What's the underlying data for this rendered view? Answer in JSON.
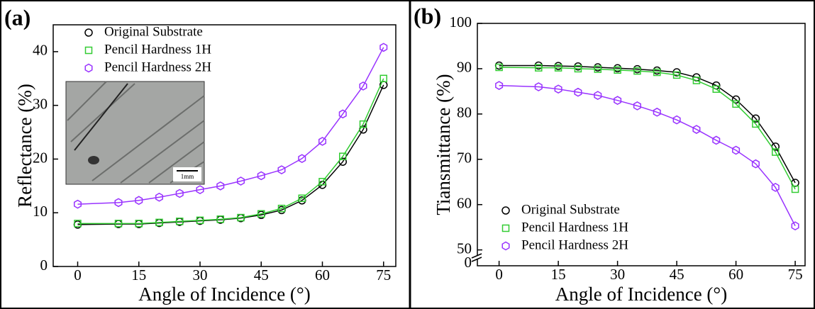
{
  "chart_data": [
    {
      "type": "line",
      "panel_label": "(a)",
      "x_label": "Angle of Incidence (°)",
      "y_label": "Reflectance (%)",
      "x": [
        0,
        10,
        15,
        20,
        25,
        30,
        35,
        40,
        45,
        50,
        55,
        60,
        65,
        70,
        75
      ],
      "series": [
        {
          "name": "Original Substrate",
          "color": "#000000",
          "marker": "circle",
          "values": [
            7.8,
            7.9,
            7.9,
            8.1,
            8.3,
            8.5,
            8.7,
            9.0,
            9.6,
            10.5,
            12.3,
            15.2,
            19.5,
            25.5,
            33.8
          ]
        },
        {
          "name": "Pencil Hardness 1H",
          "color": "#33cc33",
          "marker": "square",
          "values": [
            8.0,
            8.0,
            8.0,
            8.2,
            8.4,
            8.6,
            8.8,
            9.1,
            9.8,
            10.8,
            12.7,
            15.8,
            20.5,
            26.5,
            35.0
          ]
        },
        {
          "name": "Pencil Hardness 2H",
          "color": "#9933ff",
          "marker": "hexagon",
          "values": [
            11.6,
            11.9,
            12.3,
            12.9,
            13.6,
            14.3,
            15.0,
            15.9,
            16.9,
            18.0,
            20.1,
            23.3,
            28.4,
            33.6,
            40.8
          ]
        }
      ],
      "xlim": [
        -6,
        78
      ],
      "xticks": [
        0,
        15,
        30,
        45,
        60,
        75
      ],
      "ylim": [
        0,
        45
      ],
      "yticks": [
        0,
        10,
        20,
        30,
        40
      ],
      "legend": "upper left",
      "inset_scale_label": "1mm"
    },
    {
      "type": "line",
      "panel_label": "(b)",
      "x_label": "Angle of Incidence (°)",
      "y_label": "Tiansmittance (%)",
      "x": [
        0,
        10,
        15,
        20,
        25,
        30,
        35,
        40,
        45,
        50,
        55,
        60,
        65,
        70,
        75
      ],
      "series": [
        {
          "name": "Original Substrate",
          "color": "#000000",
          "marker": "circle",
          "values": [
            90.7,
            90.7,
            90.6,
            90.5,
            90.3,
            90.1,
            89.9,
            89.6,
            89.2,
            88.1,
            86.3,
            83.2,
            79.0,
            72.8,
            64.8
          ]
        },
        {
          "name": "Pencil Hardness 1H",
          "color": "#33cc33",
          "marker": "square",
          "values": [
            90.3,
            90.2,
            90.2,
            90.0,
            89.9,
            89.7,
            89.5,
            89.2,
            88.6,
            87.4,
            85.5,
            82.2,
            77.8,
            71.6,
            63.4
          ]
        },
        {
          "name": "Pencil Hardness 2H",
          "color": "#9933ff",
          "marker": "hexagon",
          "values": [
            86.3,
            86.0,
            85.5,
            84.8,
            84.1,
            83.0,
            81.8,
            80.4,
            78.7,
            76.6,
            74.2,
            72.0,
            69.0,
            63.8,
            55.3
          ]
        }
      ],
      "xlim": [
        -5.5,
        77.5
      ],
      "xticks": [
        0,
        15,
        30,
        45,
        60,
        75
      ],
      "ylim": [
        46.5,
        100
      ],
      "yticks": [
        50,
        60,
        70,
        80,
        90,
        100
      ],
      "ybreak_ticks": [
        0
      ],
      "legend": "lower left"
    }
  ]
}
